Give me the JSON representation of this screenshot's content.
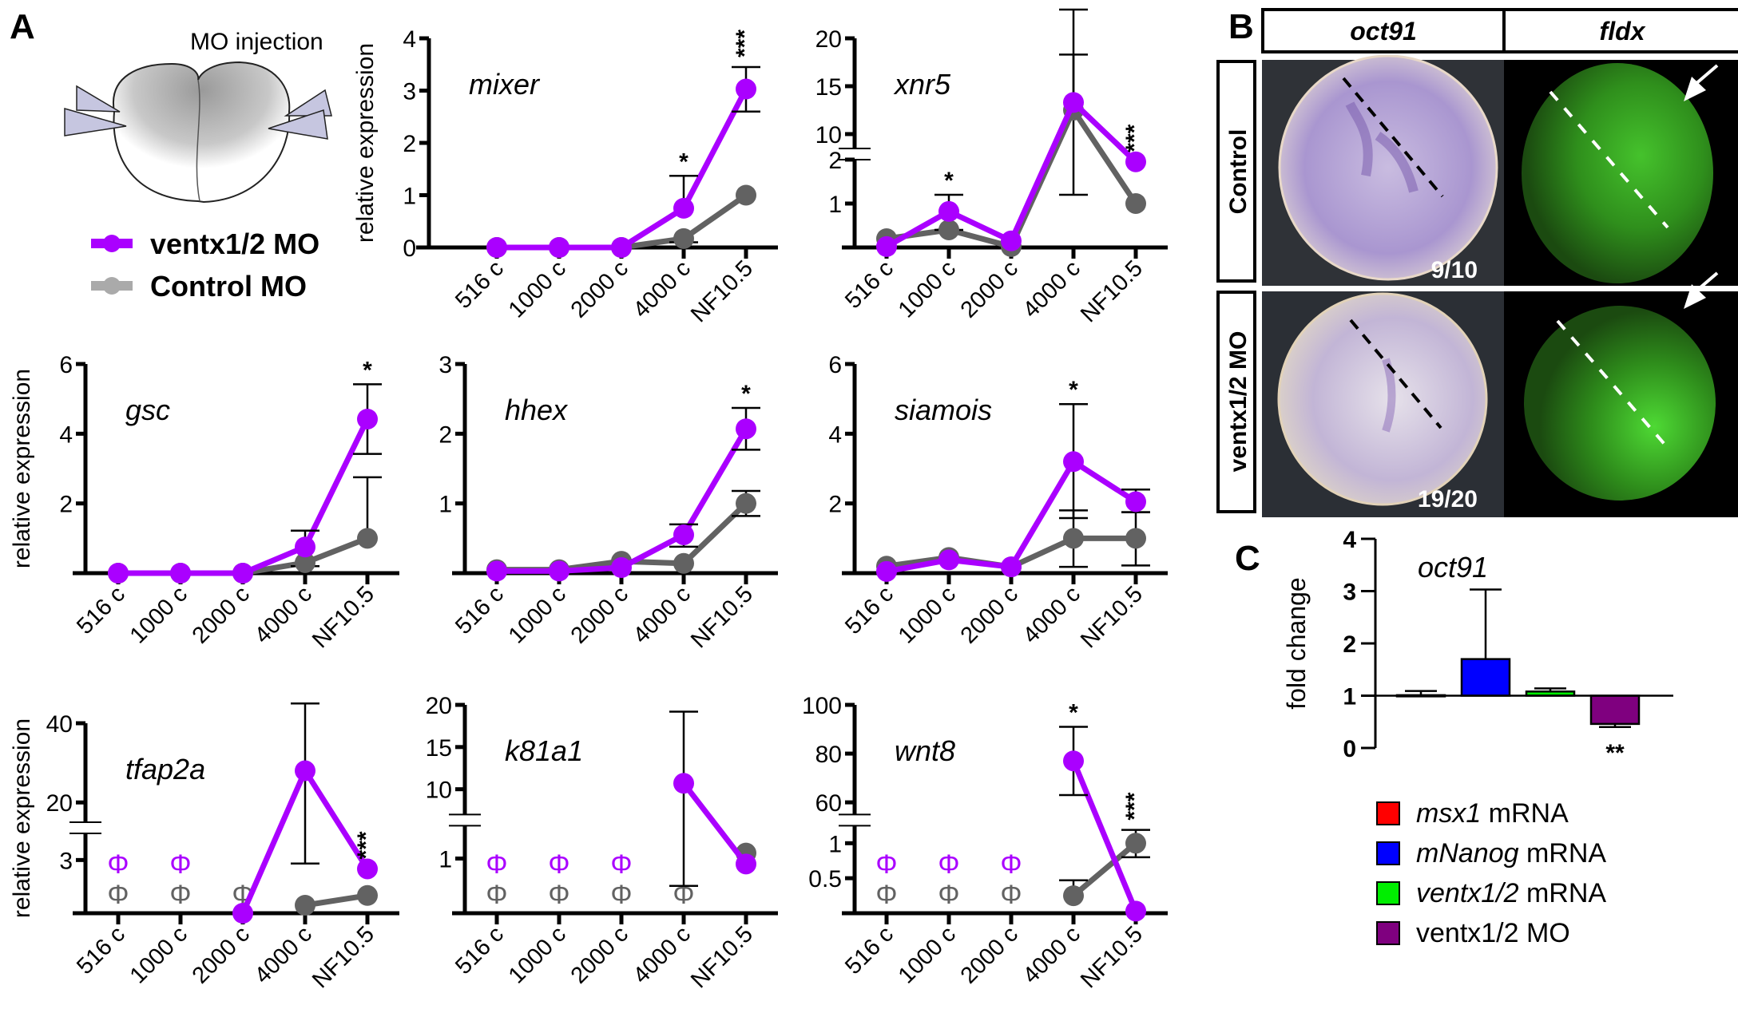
{
  "panel_labels": {
    "A": "A",
    "B": "B",
    "C": "C"
  },
  "schematic": {
    "title": "MO injection",
    "legend": [
      {
        "label": "ventx1/2 MO",
        "color": "#aa00ff"
      },
      {
        "label": "Control MO",
        "color": "#aaaaaa"
      }
    ]
  },
  "colors": {
    "ventx_line": "#aa00ff",
    "control_line": "#626262",
    "not_detected_ventx": "#aa00ff",
    "not_detected_control": "#626262"
  },
  "not_detected_symbol": "Φ",
  "chart_data": [
    {
      "type": "line",
      "title": "mixer",
      "ylabel": "relative expression",
      "categories": [
        "516 c",
        "1000 c",
        "2000 c",
        "4000 c",
        "NF10.5"
      ],
      "yticks": [
        "0",
        "1",
        "2",
        "3",
        "4"
      ],
      "ylim": [
        0,
        4
      ],
      "series": [
        {
          "name": "ventx1/2 MO",
          "values": [
            0,
            0,
            0,
            0.75,
            3.03
          ],
          "err_hi": [
            null,
            null,
            null,
            1.37,
            3.45
          ],
          "err_lo": [
            null,
            null,
            null,
            null,
            2.6
          ]
        },
        {
          "name": "Control MO",
          "values": [
            0,
            0,
            0,
            0.17,
            1.0
          ],
          "err_hi": [
            null,
            null,
            null,
            null,
            null
          ],
          "err_lo": [
            null,
            null,
            null,
            0.1,
            null
          ]
        }
      ],
      "significance": [
        null,
        null,
        null,
        "*",
        "***"
      ],
      "not_detected": {
        "ventx1/2 MO": [],
        "Control MO": []
      }
    },
    {
      "type": "line",
      "title": "xnr5",
      "ylabel": "",
      "categories": [
        "516 c",
        "1000 c",
        "2000 c",
        "4000 c",
        "NF10.5"
      ],
      "yticks": [
        "1",
        "2",
        "10",
        "15",
        "20"
      ],
      "axis_break": true,
      "lower_segment": [
        0,
        2
      ],
      "upper_segment": [
        8.5,
        20
      ],
      "series": [
        {
          "name": "ventx1/2 MO",
          "values": [
            0.02,
            0.82,
            0.15,
            13.3,
            1.95
          ],
          "err_hi": [
            null,
            1.2,
            null,
            23.0,
            null
          ],
          "err_lo": [
            null,
            null,
            null,
            null,
            null
          ]
        },
        {
          "name": "Control MO",
          "values": [
            0.2,
            0.4,
            0.02,
            12.5,
            1.0
          ],
          "err_hi": [
            null,
            null,
            null,
            18.3,
            null
          ],
          "err_lo": [
            null,
            0.4,
            null,
            1.2,
            null
          ]
        }
      ],
      "significance": [
        null,
        "*",
        null,
        null,
        "***"
      ],
      "not_detected": {
        "ventx1/2 MO": [],
        "Control MO": []
      }
    },
    {
      "type": "line",
      "title": "gsc",
      "ylabel": "relative expression",
      "categories": [
        "516 c",
        "1000 c",
        "2000 c",
        "4000 c",
        "NF10.5"
      ],
      "yticks": [
        "2",
        "4",
        "6"
      ],
      "ylim": [
        0,
        6
      ],
      "series": [
        {
          "name": "ventx1/2 MO",
          "values": [
            0,
            0,
            0,
            0.75,
            4.42
          ],
          "err_hi": [
            null,
            null,
            null,
            1.22,
            5.42
          ],
          "err_lo": [
            null,
            null,
            null,
            null,
            3.42
          ]
        },
        {
          "name": "Control MO",
          "values": [
            0,
            0,
            0,
            0.3,
            1.0
          ],
          "err_hi": [
            null,
            null,
            null,
            null,
            2.75
          ],
          "err_lo": [
            null,
            null,
            null,
            0.2,
            null
          ]
        }
      ],
      "significance": [
        null,
        null,
        null,
        null,
        "*"
      ],
      "not_detected": {
        "ventx1/2 MO": [],
        "Control MO": []
      }
    },
    {
      "type": "line",
      "title": "hhex",
      "ylabel": "",
      "categories": [
        "516 c",
        "1000 c",
        "2000 c",
        "4000 c",
        "NF10.5"
      ],
      "yticks": [
        "1",
        "2",
        "3"
      ],
      "ylim": [
        0,
        3
      ],
      "series": [
        {
          "name": "ventx1/2 MO",
          "values": [
            0.03,
            0.03,
            0.08,
            0.55,
            2.07
          ],
          "err_hi": [
            null,
            null,
            null,
            0.7,
            2.37
          ],
          "err_lo": [
            null,
            null,
            null,
            0.38,
            1.77
          ]
        },
        {
          "name": "Control MO",
          "values": [
            0.05,
            0.05,
            0.17,
            0.14,
            1.0
          ],
          "err_hi": [
            null,
            null,
            null,
            null,
            1.18
          ],
          "err_lo": [
            null,
            null,
            null,
            null,
            0.82
          ]
        }
      ],
      "significance": [
        null,
        null,
        null,
        null,
        "*"
      ],
      "not_detected": {
        "ventx1/2 MO": [],
        "Control MO": []
      }
    },
    {
      "type": "line",
      "title": "siamois",
      "ylabel": "",
      "categories": [
        "516 c",
        "1000 c",
        "2000 c",
        "4000 c",
        "NF10.5"
      ],
      "yticks": [
        "2",
        "4",
        "6"
      ],
      "ylim": [
        0,
        6
      ],
      "series": [
        {
          "name": "ventx1/2 MO",
          "values": [
            0.05,
            0.38,
            0.18,
            3.2,
            2.05
          ],
          "err_hi": [
            null,
            null,
            null,
            4.85,
            2.4
          ],
          "err_lo": [
            null,
            null,
            null,
            1.58,
            1.75
          ]
        },
        {
          "name": "Control MO",
          "values": [
            0.2,
            0.45,
            0.18,
            1.0,
            1.0
          ],
          "err_hi": [
            null,
            null,
            null,
            1.8,
            1.75
          ],
          "err_lo": [
            null,
            null,
            null,
            0.18,
            0.22
          ]
        }
      ],
      "significance": [
        null,
        null,
        null,
        "*",
        null
      ],
      "not_detected": {
        "ventx1/2 MO": [],
        "Control MO": []
      }
    },
    {
      "type": "line",
      "title": "tfap2a",
      "ylabel": "relative expression",
      "categories": [
        "516 c",
        "1000 c",
        "2000 c",
        "4000 c",
        "NF10.5"
      ],
      "yticks": [
        "3",
        "20",
        "40"
      ],
      "axis_break": true,
      "lower_segment": [
        0,
        4.5
      ],
      "upper_segment": [
        15,
        40
      ],
      "series": [
        {
          "name": "ventx1/2 MO",
          "values": [
            null,
            null,
            0,
            28,
            2.5
          ],
          "err_hi": [
            null,
            null,
            null,
            45,
            null
          ],
          "err_lo": [
            null,
            null,
            null,
            2.8,
            null
          ]
        },
        {
          "name": "Control MO",
          "values": [
            null,
            null,
            null,
            0.45,
            1.0
          ],
          "err_hi": [
            null,
            null,
            null,
            null,
            null
          ],
          "err_lo": [
            null,
            null,
            null,
            null,
            null
          ]
        }
      ],
      "significance": [
        null,
        null,
        null,
        null,
        "***"
      ],
      "not_detected": {
        "ventx1/2 MO": [
          0,
          1
        ],
        "Control MO": [
          0,
          1,
          2
        ]
      }
    },
    {
      "type": "line",
      "title": "k81a1",
      "ylabel": "",
      "categories": [
        "516 c",
        "1000 c",
        "2000 c",
        "4000 c",
        "NF10.5"
      ],
      "yticks": [
        "1",
        "10",
        "15",
        "20"
      ],
      "axis_break": true,
      "lower_segment": [
        0,
        1.6
      ],
      "upper_segment": [
        7,
        20
      ],
      "series": [
        {
          "name": "ventx1/2 MO",
          "values": [
            null,
            null,
            null,
            10.7,
            0.9
          ],
          "err_hi": [
            null,
            null,
            null,
            19.2,
            null
          ],
          "err_lo": [
            null,
            null,
            null,
            0.5,
            null
          ]
        },
        {
          "name": "Control MO",
          "values": [
            null,
            null,
            null,
            null,
            1.1
          ],
          "err_hi": [
            null,
            null,
            null,
            null,
            null
          ],
          "err_lo": [
            null,
            null,
            null,
            null,
            null
          ]
        }
      ],
      "significance": [
        null,
        null,
        null,
        null,
        null
      ],
      "not_detected": {
        "ventx1/2 MO": [
          0,
          1,
          2
        ],
        "Control MO": [
          0,
          1,
          2,
          3
        ]
      }
    },
    {
      "type": "line",
      "title": "wnt8",
      "ylabel": "",
      "categories": [
        "516 c",
        "1000 c",
        "2000 c",
        "4000 c",
        "NF10.5"
      ],
      "yticks": [
        "0.5",
        "1",
        "60",
        "80",
        "100"
      ],
      "axis_break": true,
      "lower_segment": [
        0,
        1.25
      ],
      "upper_segment": [
        55,
        100
      ],
      "series": [
        {
          "name": "ventx1/2 MO",
          "values": [
            null,
            null,
            null,
            77,
            0.03
          ],
          "err_hi": [
            null,
            null,
            null,
            91,
            null
          ],
          "err_lo": [
            null,
            null,
            null,
            63,
            null
          ]
        },
        {
          "name": "Control MO",
          "values": [
            null,
            null,
            null,
            0.25,
            1.0
          ],
          "err_hi": [
            null,
            null,
            null,
            0.47,
            1.19
          ],
          "err_lo": [
            null,
            null,
            null,
            null,
            0.8
          ]
        }
      ],
      "significance": [
        null,
        null,
        null,
        "*",
        "***"
      ],
      "not_detected": {
        "ventx1/2 MO": [
          0,
          1,
          2
        ],
        "Control MO": [
          0,
          1,
          2
        ]
      }
    },
    {
      "type": "bar",
      "title": "oct91",
      "ylabel": "fold change",
      "categories": [
        "msx1 mRNA",
        "mNanog mRNA",
        "ventx1/2 mRNA",
        "ventx1/2 MO"
      ],
      "values": [
        1.01,
        1.7,
        1.08,
        0.46
      ],
      "err": [
        1.09,
        3.03,
        1.14,
        0.4
      ],
      "baseline": 1,
      "ylim": [
        0,
        4
      ],
      "yticks": [
        "0",
        "1",
        "2",
        "3",
        "4"
      ],
      "colors": [
        "#ff0000",
        "#0000ff",
        "#00ee00",
        "#7f007f"
      ],
      "significance": [
        null,
        null,
        null,
        "**"
      ],
      "legend": [
        {
          "italic": "msx1",
          "rest": " mRNA",
          "color": "#ff0000"
        },
        {
          "italic": "mNanog",
          "rest": " mRNA",
          "color": "#0000ff"
        },
        {
          "italic": "ventx1/2",
          "rest": " mRNA",
          "color": "#00ee00"
        },
        {
          "italic": "",
          "rest": "ventx1/2 MO",
          "color": "#7f007f"
        }
      ]
    }
  ],
  "images": {
    "column_headers": [
      "oct91",
      "fldx"
    ],
    "row_labels": [
      "Control",
      "ventx1/2 MO"
    ],
    "counts": [
      "9/10",
      "19/20"
    ]
  }
}
